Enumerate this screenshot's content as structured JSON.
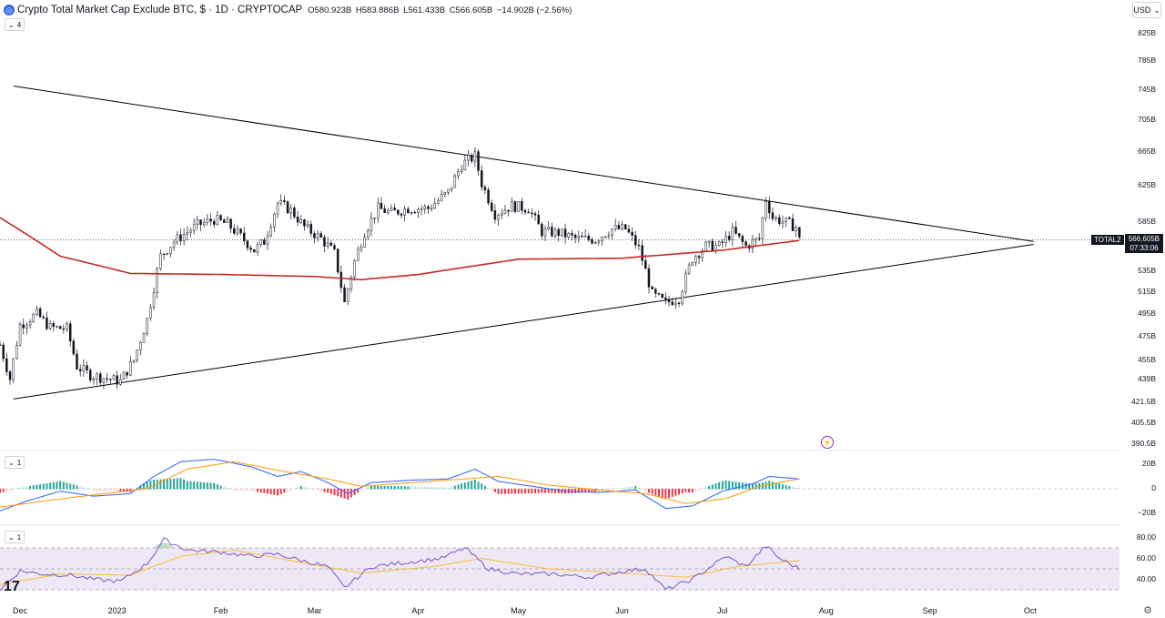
{
  "header": {
    "logo_icon": "crypto-coin-icon",
    "title": "Crypto Total Market Cap Exclude BTC, $ · 1D · CRYPTOCAP",
    "open": "O580.923B",
    "high": "H583.886B",
    "low": "L561.433B",
    "close": "C566.605B",
    "change": "−14.902B (−2.56%)"
  },
  "colors": {
    "up": "#089981",
    "down": "#f23645",
    "sma": "#c62828",
    "trend": "#000000",
    "macd": "#2962ff",
    "signal": "#ff9800",
    "rsi": "#7e57c2",
    "rsi_band": "#ede7f6"
  },
  "currency": "USD",
  "panes": {
    "main_collapse": "4",
    "macd_collapse": "1",
    "rsi_collapse": "1"
  },
  "symbol_badge": "TOTAL2",
  "price_badge": {
    "price": "566.605B",
    "countdown": "07:33:06"
  },
  "y_axis_main": [
    "825B",
    "785B",
    "745B",
    "705B",
    "665B",
    "625B",
    "585B",
    "535B",
    "515B",
    "495B",
    "475B",
    "455B",
    "439B",
    "421.5B",
    "405.5B",
    "390.5B"
  ],
  "y_axis_macd": [
    "20B",
    "0",
    "−20B"
  ],
  "y_axis_rsi": [
    "80.00",
    "60.00",
    "40.00"
  ],
  "x_axis": [
    "Dec",
    "2023",
    "Feb",
    "Mar",
    "Apr",
    "May",
    "Jun",
    "Jul",
    "Aug",
    "Sep",
    "Oct"
  ],
  "chart_data": {
    "type": "candlestick",
    "title": "Crypto Total Market Cap Exclude BTC",
    "interval": "1D",
    "x_range": [
      "2022-11-27",
      "2023-10-10"
    ],
    "y_scale": "log",
    "ylim": [
      390,
      825
    ],
    "last_close": 566.605,
    "price_path": [
      [
        "2022-11-27",
        468
      ],
      [
        "2022-11-30",
        440
      ],
      [
        "2022-12-03",
        485
      ],
      [
        "2022-12-08",
        495
      ],
      [
        "2022-12-12",
        483
      ],
      [
        "2022-12-17",
        482
      ],
      [
        "2022-12-20",
        450
      ],
      [
        "2022-12-24",
        443
      ],
      [
        "2022-12-29",
        440
      ],
      [
        "2023-01-02",
        438
      ],
      [
        "2023-01-06",
        455
      ],
      [
        "2023-01-10",
        490
      ],
      [
        "2023-01-14",
        550
      ],
      [
        "2023-01-18",
        565
      ],
      [
        "2023-01-25",
        582
      ],
      [
        "2023-01-30",
        588
      ],
      [
        "2023-02-03",
        583
      ],
      [
        "2023-02-07",
        570
      ],
      [
        "2023-02-11",
        556
      ],
      [
        "2023-02-14",
        565
      ],
      [
        "2023-02-18",
        606
      ],
      [
        "2023-02-22",
        598
      ],
      [
        "2023-02-26",
        580
      ],
      [
        "2023-03-03",
        568
      ],
      [
        "2023-03-07",
        553
      ],
      [
        "2023-03-10",
        505
      ],
      [
        "2023-03-13",
        545
      ],
      [
        "2023-03-16",
        575
      ],
      [
        "2023-03-20",
        600
      ],
      [
        "2023-03-24",
        595
      ],
      [
        "2023-03-29",
        600
      ],
      [
        "2023-04-04",
        600
      ],
      [
        "2023-04-10",
        618
      ],
      [
        "2023-04-14",
        650
      ],
      [
        "2023-04-18",
        660
      ],
      [
        "2023-04-20",
        628
      ],
      [
        "2023-04-24",
        594
      ],
      [
        "2023-04-29",
        603
      ],
      [
        "2023-05-04",
        600
      ],
      [
        "2023-05-08",
        575
      ],
      [
        "2023-05-13",
        574
      ],
      [
        "2023-05-18",
        568
      ],
      [
        "2023-05-24",
        567
      ],
      [
        "2023-05-29",
        578
      ],
      [
        "2023-06-02",
        578
      ],
      [
        "2023-06-06",
        558
      ],
      [
        "2023-06-10",
        513
      ],
      [
        "2023-06-14",
        505
      ],
      [
        "2023-06-18",
        510
      ],
      [
        "2023-06-22",
        548
      ],
      [
        "2023-06-26",
        560
      ],
      [
        "2023-06-30",
        560
      ],
      [
        "2023-07-04",
        575
      ],
      [
        "2023-07-08",
        560
      ],
      [
        "2023-07-12",
        568
      ],
      [
        "2023-07-14",
        610
      ],
      [
        "2023-07-16",
        590
      ],
      [
        "2023-07-20",
        585
      ],
      [
        "2023-07-23",
        580
      ],
      [
        "2023-07-24",
        566.605
      ]
    ],
    "sma": [
      [
        "2022-11-27",
        590
      ],
      [
        "2022-12-15",
        550
      ],
      [
        "2023-01-05",
        533
      ],
      [
        "2023-02-01",
        532
      ],
      [
        "2023-03-01",
        530
      ],
      [
        "2023-03-15",
        527
      ],
      [
        "2023-04-01",
        532
      ],
      [
        "2023-05-01",
        547
      ],
      [
        "2023-06-01",
        548
      ],
      [
        "2023-07-01",
        556
      ],
      [
        "2023-07-24",
        566
      ]
    ],
    "trendlines": [
      {
        "from": [
          "2022-12-01",
          750
        ],
        "to": [
          "2023-10-02",
          565
        ]
      },
      {
        "from": [
          "2022-12-01",
          424
        ],
        "to": [
          "2023-10-02",
          562
        ]
      }
    ],
    "macd": {
      "ylim": [
        -30,
        30
      ],
      "macd": [
        [
          "2022-11-27",
          -18
        ],
        [
          "2022-12-05",
          -10
        ],
        [
          "2022-12-15",
          -2
        ],
        [
          "2022-12-25",
          -6
        ],
        [
          "2023-01-05",
          -4
        ],
        [
          "2023-01-12",
          10
        ],
        [
          "2023-01-20",
          22
        ],
        [
          "2023-01-30",
          24
        ],
        [
          "2023-02-10",
          18
        ],
        [
          "2023-02-18",
          10
        ],
        [
          "2023-02-25",
          14
        ],
        [
          "2023-03-05",
          5
        ],
        [
          "2023-03-11",
          -4
        ],
        [
          "2023-03-18",
          5
        ],
        [
          "2023-03-30",
          7
        ],
        [
          "2023-04-10",
          8
        ],
        [
          "2023-04-18",
          16
        ],
        [
          "2023-04-25",
          6
        ],
        [
          "2023-05-05",
          2
        ],
        [
          "2023-05-15",
          -2
        ],
        [
          "2023-05-25",
          -3
        ],
        [
          "2023-06-05",
          -1
        ],
        [
          "2023-06-14",
          -16
        ],
        [
          "2023-06-22",
          -14
        ],
        [
          "2023-07-01",
          -2
        ],
        [
          "2023-07-10",
          4
        ],
        [
          "2023-07-15",
          10
        ],
        [
          "2023-07-24",
          8
        ]
      ],
      "signal": [
        [
          "2022-11-27",
          -15
        ],
        [
          "2022-12-10",
          -10
        ],
        [
          "2022-12-25",
          -5
        ],
        [
          "2023-01-10",
          0
        ],
        [
          "2023-01-22",
          16
        ],
        [
          "2023-02-05",
          22
        ],
        [
          "2023-02-20",
          14
        ],
        [
          "2023-03-05",
          8
        ],
        [
          "2023-03-15",
          2
        ],
        [
          "2023-03-30",
          5
        ],
        [
          "2023-04-15",
          8
        ],
        [
          "2023-04-25",
          10
        ],
        [
          "2023-05-10",
          3
        ],
        [
          "2023-05-25",
          -1
        ],
        [
          "2023-06-08",
          -4
        ],
        [
          "2023-06-20",
          -12
        ],
        [
          "2023-07-02",
          -8
        ],
        [
          "2023-07-12",
          2
        ],
        [
          "2023-07-24",
          8
        ]
      ]
    },
    "rsi": {
      "ylim": [
        25,
        85
      ],
      "bands": [
        30,
        50,
        70
      ],
      "rsi": [
        [
          "2022-11-27",
          30
        ],
        [
          "2022-12-03",
          48
        ],
        [
          "2022-12-10",
          45
        ],
        [
          "2022-12-18",
          44
        ],
        [
          "2022-12-25",
          40
        ],
        [
          "2023-01-02",
          38
        ],
        [
          "2023-01-10",
          55
        ],
        [
          "2023-01-15",
          78
        ],
        [
          "2023-01-22",
          68
        ],
        [
          "2023-02-01",
          66
        ],
        [
          "2023-02-10",
          62
        ],
        [
          "2023-02-18",
          64
        ],
        [
          "2023-02-25",
          58
        ],
        [
          "2023-03-05",
          52
        ],
        [
          "2023-03-10",
          32
        ],
        [
          "2023-03-18",
          52
        ],
        [
          "2023-03-28",
          56
        ],
        [
          "2023-04-08",
          60
        ],
        [
          "2023-04-15",
          70
        ],
        [
          "2023-04-22",
          50
        ],
        [
          "2023-05-01",
          45
        ],
        [
          "2023-05-12",
          45
        ],
        [
          "2023-05-22",
          42
        ],
        [
          "2023-06-02",
          48
        ],
        [
          "2023-06-08",
          50
        ],
        [
          "2023-06-14",
          30
        ],
        [
          "2023-06-22",
          40
        ],
        [
          "2023-07-02",
          62
        ],
        [
          "2023-07-08",
          52
        ],
        [
          "2023-07-14",
          72
        ],
        [
          "2023-07-18",
          60
        ],
        [
          "2023-07-24",
          50
        ]
      ],
      "rsi_ma": [
        [
          "2022-11-27",
          35
        ],
        [
          "2022-12-15",
          45
        ],
        [
          "2023-01-05",
          44
        ],
        [
          "2023-01-20",
          62
        ],
        [
          "2023-02-05",
          68
        ],
        [
          "2023-02-25",
          56
        ],
        [
          "2023-03-15",
          46
        ],
        [
          "2023-04-05",
          52
        ],
        [
          "2023-04-20",
          60
        ],
        [
          "2023-05-10",
          50
        ],
        [
          "2023-06-01",
          46
        ],
        [
          "2023-06-20",
          42
        ],
        [
          "2023-07-05",
          52
        ],
        [
          "2023-07-24",
          58
        ]
      ]
    }
  }
}
